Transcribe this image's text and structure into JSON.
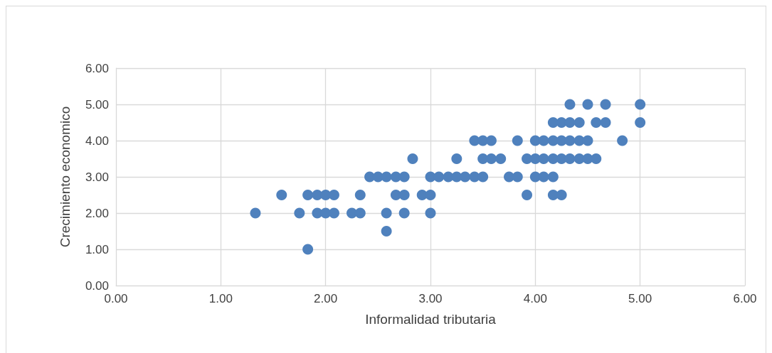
{
  "chart_data": {
    "type": "scatter",
    "xlabel": "Informalidad tributaria",
    "ylabel": "Crecimiento economico",
    "series": [
      {
        "color": "#4f81bd",
        "x": [
          1.33,
          1.75,
          1.92,
          2.0,
          2.08,
          2.25,
          2.33,
          2.58,
          2.75,
          3.0,
          1.58,
          1.83,
          1.92,
          2.0,
          2.08,
          2.33,
          2.67,
          2.75,
          2.92,
          3.0,
          2.58,
          1.83,
          2.42,
          2.5,
          2.58,
          2.67,
          2.75,
          3.0,
          3.08,
          3.17,
          3.25,
          3.33,
          3.42,
          3.5,
          3.75,
          3.83,
          4.0,
          4.08,
          4.17,
          2.83,
          3.25,
          3.5,
          3.58,
          3.67,
          3.92,
          4.0,
          4.08,
          4.17,
          4.25,
          4.33,
          4.42,
          4.5,
          4.58,
          3.42,
          3.5,
          3.58,
          3.83,
          4.0,
          4.08,
          4.17,
          4.25,
          4.33,
          4.42,
          4.5,
          4.83,
          4.17,
          4.25,
          4.33,
          4.42,
          4.58,
          4.67,
          5.0,
          4.33,
          4.5,
          4.67,
          5.0,
          3.92,
          4.17,
          4.25
        ],
        "values": [
          2,
          2,
          2,
          2,
          2,
          2,
          2,
          2,
          2,
          2,
          2.5,
          2.5,
          2.5,
          2.5,
          2.5,
          2.5,
          2.5,
          2.5,
          2.5,
          2.5,
          1.5,
          1,
          3,
          3,
          3,
          3,
          3,
          3,
          3,
          3,
          3,
          3,
          3,
          3,
          3,
          3,
          3,
          3,
          3,
          3.5,
          3.5,
          3.5,
          3.5,
          3.5,
          3.5,
          3.5,
          3.5,
          3.5,
          3.5,
          3.5,
          3.5,
          3.5,
          3.5,
          4,
          4,
          4,
          4,
          4,
          4,
          4,
          4,
          4,
          4,
          4,
          4,
          4.5,
          4.5,
          4.5,
          4.5,
          4.5,
          4.5,
          4.5,
          5,
          5,
          5,
          5,
          2.5,
          2.5,
          2.5
        ]
      }
    ],
    "xlim": [
      0,
      6
    ],
    "xticks": [
      {
        "value": 0,
        "label": "0.00"
      },
      {
        "value": 1,
        "label": "1.00"
      },
      {
        "value": 2,
        "label": "2.00"
      },
      {
        "value": 3,
        "label": "3.00"
      },
      {
        "value": 4,
        "label": "4.00"
      },
      {
        "value": 5,
        "label": "5.00"
      },
      {
        "value": 6,
        "label": "6.00"
      }
    ],
    "ylim": [
      0,
      6
    ],
    "yticks": [
      {
        "value": 0,
        "label": "0.00"
      },
      {
        "value": 1,
        "label": "1.00"
      },
      {
        "value": 2,
        "label": "2.00"
      },
      {
        "value": 3,
        "label": "3.00"
      },
      {
        "value": 4,
        "label": "4.00"
      },
      {
        "value": 5,
        "label": "5.00"
      },
      {
        "value": 6,
        "label": "6.00"
      }
    ],
    "grid": true,
    "marker": "circle"
  }
}
